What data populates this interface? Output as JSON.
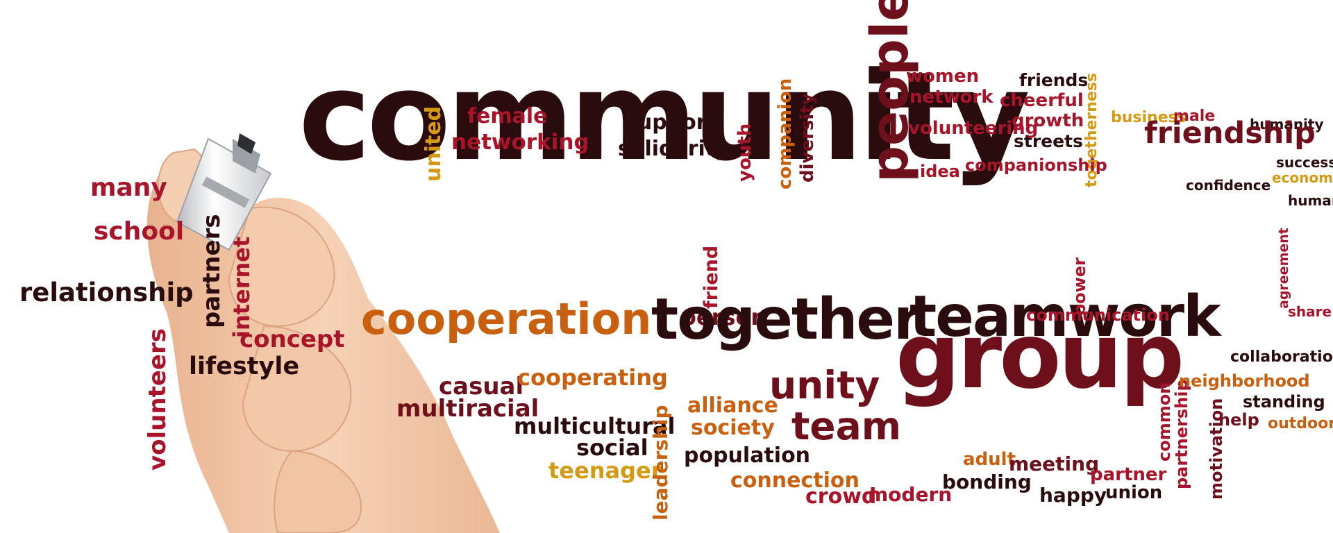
{
  "colors": {
    "dark": "#2a0c0e",
    "maroon": "#6e0f1c",
    "red": "#a8142a",
    "orange": "#c8600f",
    "gold": "#d59a14",
    "skin": "#f2c7a6"
  },
  "illustration": {
    "subject": "hand-holding-marker-icon"
  },
  "words": [
    {
      "text": "community",
      "c": "dark"
    },
    {
      "text": "people",
      "c": "maroon"
    },
    {
      "text": "women",
      "c": "red"
    },
    {
      "text": "network",
      "c": "red"
    },
    {
      "text": "friends",
      "c": "dark"
    },
    {
      "text": "cheerful",
      "c": "red"
    },
    {
      "text": "growth",
      "c": "red"
    },
    {
      "text": "streets",
      "c": "dark"
    },
    {
      "text": "volunteering",
      "c": "red"
    },
    {
      "text": "togetherness",
      "c": "gold"
    },
    {
      "text": "idea",
      "c": "red"
    },
    {
      "text": "companionship",
      "c": "red"
    },
    {
      "text": "business",
      "c": "gold"
    },
    {
      "text": "male",
      "c": "red"
    },
    {
      "text": "humanity",
      "c": "dark"
    },
    {
      "text": "friendship",
      "c": "maroon"
    },
    {
      "text": "success",
      "c": "dark"
    },
    {
      "text": "economy",
      "c": "gold"
    },
    {
      "text": "confidence",
      "c": "dark"
    },
    {
      "text": "human",
      "c": "dark"
    },
    {
      "text": "agreement",
      "c": "red"
    },
    {
      "text": "share",
      "c": "red"
    },
    {
      "text": "united",
      "c": "gold"
    },
    {
      "text": "female",
      "c": "red"
    },
    {
      "text": "networking",
      "c": "red"
    },
    {
      "text": "support",
      "c": "dark"
    },
    {
      "text": "solidarity",
      "c": "dark"
    },
    {
      "text": "youth",
      "c": "red"
    },
    {
      "text": "companion",
      "c": "orange"
    },
    {
      "text": "diversity",
      "c": "maroon"
    },
    {
      "text": "many",
      "c": "red"
    },
    {
      "text": "school",
      "c": "red"
    },
    {
      "text": "relationship",
      "c": "dark"
    },
    {
      "text": "partners",
      "c": "dark"
    },
    {
      "text": "internet",
      "c": "red"
    },
    {
      "text": "volunteers",
      "c": "red"
    },
    {
      "text": "concept",
      "c": "red"
    },
    {
      "text": "lifestyle",
      "c": "dark"
    },
    {
      "text": "cooperation",
      "c": "orange"
    },
    {
      "text": "casual",
      "c": "maroon"
    },
    {
      "text": "cooperating",
      "c": "orange"
    },
    {
      "text": "multiracial",
      "c": "maroon"
    },
    {
      "text": "multicultural",
      "c": "dark"
    },
    {
      "text": "social",
      "c": "dark"
    },
    {
      "text": "teenager",
      "c": "gold"
    },
    {
      "text": "leadership",
      "c": "orange"
    },
    {
      "text": "friend",
      "c": "red"
    },
    {
      "text": "person",
      "c": "maroon"
    },
    {
      "text": "together",
      "c": "dark"
    },
    {
      "text": "teamwork",
      "c": "dark"
    },
    {
      "text": "alliance",
      "c": "orange"
    },
    {
      "text": "society",
      "c": "orange"
    },
    {
      "text": "unity",
      "c": "maroon"
    },
    {
      "text": "team",
      "c": "maroon"
    },
    {
      "text": "population",
      "c": "dark"
    },
    {
      "text": "connection",
      "c": "orange"
    },
    {
      "text": "crowd",
      "c": "red"
    },
    {
      "text": "modern",
      "c": "red"
    },
    {
      "text": "group",
      "c": "maroon"
    },
    {
      "text": "bonding",
      "c": "dark"
    },
    {
      "text": "adult",
      "c": "orange"
    },
    {
      "text": "meeting",
      "c": "maroon"
    },
    {
      "text": "happy",
      "c": "dark"
    },
    {
      "text": "partner",
      "c": "red"
    },
    {
      "text": "union",
      "c": "dark"
    },
    {
      "text": "common",
      "c": "red"
    },
    {
      "text": "partnership",
      "c": "red"
    },
    {
      "text": "motivation",
      "c": "maroon"
    },
    {
      "text": "help",
      "c": "maroon"
    },
    {
      "text": "standing",
      "c": "dark"
    },
    {
      "text": "outdoors",
      "c": "orange"
    },
    {
      "text": "neighborhood",
      "c": "orange"
    },
    {
      "text": "collaboration",
      "c": "dark"
    },
    {
      "text": "power",
      "c": "red"
    },
    {
      "text": "communication",
      "c": "red"
    }
  ]
}
